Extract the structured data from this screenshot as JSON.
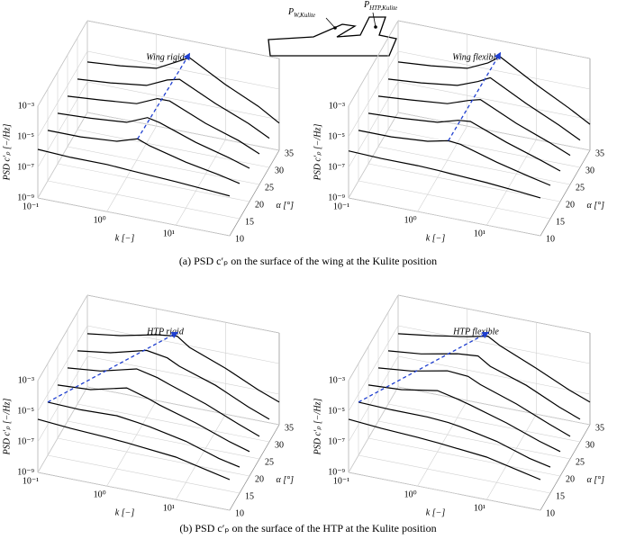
{
  "diagram": {
    "sensors": [
      {
        "symbol": "P",
        "subscript": "W,Kulite"
      },
      {
        "symbol": "P",
        "subscript": "HTP,Kulite"
      }
    ]
  },
  "captions": [
    "(a) PSD c′ₚ on the surface of the wing at the Kulite position",
    "(b) PSD c′ₚ on the surface of the HTP at the Kulite position"
  ],
  "chart_data": [
    {
      "type": "waterfall",
      "title": "Wing rigid",
      "xlabel": "k [−]",
      "ylabel": "α [°]",
      "zlabel": "PSD c′ₚ [−/Hz]",
      "log_x": true,
      "log_z": true,
      "grid": true,
      "color": "#000000",
      "arrow_color": "#1f3fd0",
      "xlim": [
        0.1,
        60
      ],
      "xticks": [
        {
          "value": 0.1,
          "label": "10⁻¹"
        },
        {
          "value": 1,
          "label": "10⁰"
        },
        {
          "value": 10,
          "label": "10¹"
        }
      ],
      "ylim": [
        10,
        35
      ],
      "yticks": [
        10,
        15,
        20,
        25,
        30,
        35
      ],
      "zlim": [
        1e-09,
        0.001
      ],
      "zticks": [
        {
          "value": 1e-09,
          "label": "10⁻⁹"
        },
        {
          "value": 1e-07,
          "label": "10⁻⁷"
        },
        {
          "value": 1e-05,
          "label": "10⁻⁵"
        },
        {
          "value": 0.001,
          "label": "10⁻³"
        }
      ],
      "x": [
        0.1,
        0.3,
        1,
        2,
        3,
        10,
        30,
        60
      ],
      "series": [
        {
          "y": 10,
          "values": [
            1.5e-06,
            1.2e-06,
            1.2e-06,
            1e-06,
            9e-07,
            7e-07,
            5e-07,
            4e-07
          ]
        },
        {
          "y": 15,
          "values": [
            2e-06,
            2e-06,
            3e-06,
            8e-06,
            4e-06,
            1e-06,
            4e-07,
            2e-07
          ]
        },
        {
          "y": 20,
          "values": [
            2e-06,
            2.5e-06,
            4e-06,
            1.5e-05,
            1e-05,
            1.5e-06,
            4e-07,
            1.5e-07
          ]
        },
        {
          "y": 25,
          "values": [
            2e-06,
            3e-06,
            5e-06,
            2e-05,
            2e-05,
            2e-06,
            4e-07,
            1e-07
          ]
        },
        {
          "y": 30,
          "values": [
            2e-06,
            3e-06,
            6e-06,
            2.5e-05,
            4e-05,
            3e-06,
            4e-07,
            8e-08
          ]
        },
        {
          "y": 35,
          "values": [
            2e-06,
            3e-06,
            6e-06,
            3e-05,
            8e-05,
            4e-06,
            4e-07,
            6e-08
          ]
        }
      ]
    },
    {
      "type": "waterfall",
      "title": "Wing flexible",
      "xlabel": "k [−]",
      "ylabel": "α [°]",
      "zlabel": "PSD c′ₚ [−/Hz]",
      "log_x": true,
      "log_z": true,
      "grid": true,
      "color": "#000000",
      "arrow_color": "#1f3fd0",
      "xlim": [
        0.1,
        60
      ],
      "xticks": [
        {
          "value": 0.1,
          "label": "10⁻¹"
        },
        {
          "value": 1,
          "label": "10⁰"
        },
        {
          "value": 10,
          "label": "10¹"
        }
      ],
      "ylim": [
        10,
        35
      ],
      "yticks": [
        10,
        15,
        20,
        25,
        30,
        35
      ],
      "zlim": [
        1e-09,
        0.001
      ],
      "zticks": [
        {
          "value": 1e-09,
          "label": "10⁻⁹"
        },
        {
          "value": 1e-07,
          "label": "10⁻⁷"
        },
        {
          "value": 1e-05,
          "label": "10⁻⁵"
        },
        {
          "value": 0.001,
          "label": "10⁻³"
        }
      ],
      "x": [
        0.1,
        0.3,
        1,
        2,
        3,
        10,
        30,
        60
      ],
      "series": [
        {
          "y": 10,
          "values": [
            1.2e-06,
            1e-06,
            1e-06,
            9e-07,
            8e-07,
            6e-07,
            4e-07,
            3e-07
          ]
        },
        {
          "y": 15,
          "values": [
            2e-06,
            2e-06,
            3e-06,
            6e-06,
            5e-06,
            1e-06,
            3e-07,
            1.5e-07
          ]
        },
        {
          "y": 20,
          "values": [
            2e-06,
            2.5e-06,
            4e-06,
            1e-05,
            1.2e-05,
            1.5e-06,
            3e-07,
            1e-07
          ]
        },
        {
          "y": 25,
          "values": [
            2e-06,
            3e-06,
            5e-06,
            1.5e-05,
            2.5e-05,
            2e-06,
            3e-07,
            8e-08
          ]
        },
        {
          "y": 30,
          "values": [
            2e-06,
            3e-06,
            6e-06,
            2e-05,
            5e-05,
            3e-06,
            3e-07,
            6e-08
          ]
        },
        {
          "y": 35,
          "values": [
            2e-06,
            3e-06,
            6e-06,
            2.5e-05,
            9e-05,
            4e-06,
            3e-07,
            5e-08
          ]
        }
      ]
    },
    {
      "type": "waterfall",
      "title": "HTP rigid",
      "xlabel": "k [−]",
      "ylabel": "α [°]",
      "zlabel": "PSD c′ₚ [−/Hz]",
      "log_x": true,
      "log_z": true,
      "grid": true,
      "color": "#000000",
      "arrow_color": "#1f3fd0",
      "xlim": [
        0.1,
        60
      ],
      "xticks": [
        {
          "value": 0.1,
          "label": "10⁻¹"
        },
        {
          "value": 1,
          "label": "10⁰"
        },
        {
          "value": 10,
          "label": "10¹"
        }
      ],
      "ylim": [
        10,
        35
      ],
      "yticks": [
        10,
        15,
        20,
        25,
        30,
        35
      ],
      "zlim": [
        1e-09,
        0.001
      ],
      "zticks": [
        {
          "value": 1e-09,
          "label": "10⁻⁹"
        },
        {
          "value": 1e-07,
          "label": "10⁻⁷"
        },
        {
          "value": 1e-05,
          "label": "10⁻⁵"
        },
        {
          "value": 0.001,
          "label": "10⁻³"
        }
      ],
      "x": [
        0.1,
        0.3,
        1,
        2,
        3,
        10,
        30,
        60
      ],
      "series": [
        {
          "y": 10,
          "values": [
            3e-06,
            2e-06,
            1.5e-06,
            1.2e-06,
            1e-06,
            6e-07,
            2e-07,
            1e-07
          ]
        },
        {
          "y": 15,
          "values": [
            3e-06,
            2.5e-06,
            3e-06,
            2e-06,
            1.5e-06,
            5e-07,
            1e-07,
            5e-08
          ]
        },
        {
          "y": 20,
          "values": [
            3e-06,
            4e-06,
            1.5e-05,
            6e-06,
            3e-06,
            6e-07,
            1e-07,
            4e-08
          ]
        },
        {
          "y": 25,
          "values": [
            3e-06,
            5e-06,
            2e-05,
            1e-05,
            5e-06,
            8e-07,
            1e-07,
            3e-08
          ]
        },
        {
          "y": 30,
          "values": [
            3e-06,
            6e-06,
            2.5e-05,
            1.5e-05,
            6e-06,
            1e-06,
            1e-07,
            3e-08
          ]
        },
        {
          "y": 35,
          "values": [
            3e-06,
            6e-06,
            2e-05,
            3e-05,
            8e-06,
            1e-06,
            1e-07,
            3e-08
          ]
        }
      ]
    },
    {
      "type": "waterfall",
      "title": "HTP flexible",
      "xlabel": "k [−]",
      "ylabel": "α [°]",
      "zlabel": "PSD c′ₚ [−/Hz]",
      "log_x": true,
      "log_z": true,
      "grid": true,
      "color": "#000000",
      "arrow_color": "#1f3fd0",
      "xlim": [
        0.1,
        60
      ],
      "xticks": [
        {
          "value": 0.1,
          "label": "10⁻¹"
        },
        {
          "value": 1,
          "label": "10⁰"
        },
        {
          "value": 10,
          "label": "10¹"
        }
      ],
      "ylim": [
        10,
        35
      ],
      "yticks": [
        10,
        15,
        20,
        25,
        30,
        35
      ],
      "zlim": [
        1e-09,
        0.001
      ],
      "zticks": [
        {
          "value": 1e-09,
          "label": "10⁻⁹"
        },
        {
          "value": 1e-07,
          "label": "10⁻⁷"
        },
        {
          "value": 1e-05,
          "label": "10⁻⁵"
        },
        {
          "value": 0.001,
          "label": "10⁻³"
        }
      ],
      "x": [
        0.1,
        0.3,
        1,
        2,
        3,
        10,
        30,
        60
      ],
      "series": [
        {
          "y": 10,
          "values": [
            3e-06,
            2e-06,
            1.5e-06,
            1.2e-06,
            1e-06,
            6e-07,
            2e-07,
            1e-07
          ]
        },
        {
          "y": 15,
          "values": [
            3e-06,
            2.5e-06,
            2.5e-06,
            2e-06,
            1.5e-06,
            5e-07,
            1e-07,
            5e-08
          ]
        },
        {
          "y": 20,
          "values": [
            3e-06,
            4e-06,
            1e-05,
            5e-06,
            3e-06,
            6e-07,
            1e-07,
            4e-08
          ]
        },
        {
          "y": 25,
          "values": [
            3e-06,
            5e-06,
            1.5e-05,
            1.2e-05,
            5e-06,
            8e-07,
            1e-07,
            3e-08
          ]
        },
        {
          "y": 30,
          "values": [
            3e-06,
            5e-06,
            1.5e-05,
            2e-05,
            6e-06,
            1e-06,
            1e-07,
            3e-08
          ]
        },
        {
          "y": 35,
          "values": [
            3e-06,
            6e-06,
            1.5e-05,
            3e-05,
            1e-05,
            1e-06,
            1e-07,
            3e-08
          ]
        }
      ]
    }
  ]
}
